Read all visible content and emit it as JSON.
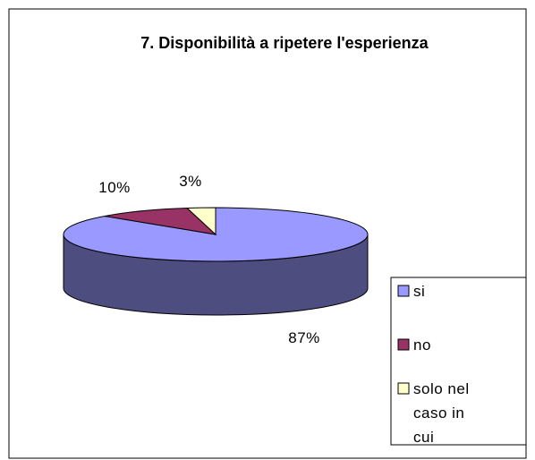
{
  "chart_data": {
    "type": "pie",
    "title": "7. Disponibilità a ripetere l'esperienza",
    "categories": [
      "si",
      "no",
      "solo nel caso in cui"
    ],
    "values": [
      87,
      10,
      3
    ],
    "value_labels": [
      "87%",
      "10%",
      "3%"
    ],
    "colors": [
      "#9999ff",
      "#993366",
      "#ffffcc"
    ],
    "legend": "right"
  }
}
